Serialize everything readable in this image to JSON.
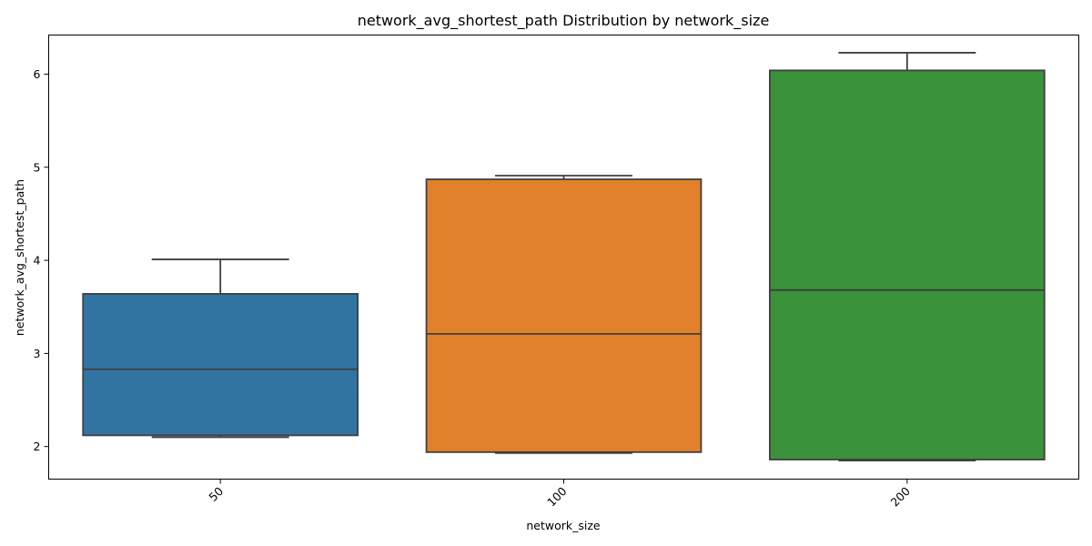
{
  "chart_data": {
    "type": "boxplot",
    "title": "network_avg_shortest_path Distribution by network_size",
    "xlabel": "network_size",
    "ylabel": "network_avg_shortest_path",
    "ylim": [
      1.65,
      6.42
    ],
    "yticks": [
      2,
      3,
      4,
      5,
      6
    ],
    "grid": false,
    "legend": "none",
    "categories": [
      "50",
      "100",
      "200"
    ],
    "colors": [
      "#3274a1",
      "#e1812c",
      "#3a923a"
    ],
    "boxes": [
      {
        "category": "50",
        "min": 2.1,
        "q1": 2.12,
        "median": 2.83,
        "q3": 3.64,
        "max": 4.01
      },
      {
        "category": "100",
        "min": 1.93,
        "q1": 1.94,
        "median": 3.21,
        "q3": 4.87,
        "max": 4.91
      },
      {
        "category": "200",
        "min": 1.85,
        "q1": 1.86,
        "median": 3.68,
        "q3": 6.04,
        "max": 6.23
      }
    ]
  }
}
